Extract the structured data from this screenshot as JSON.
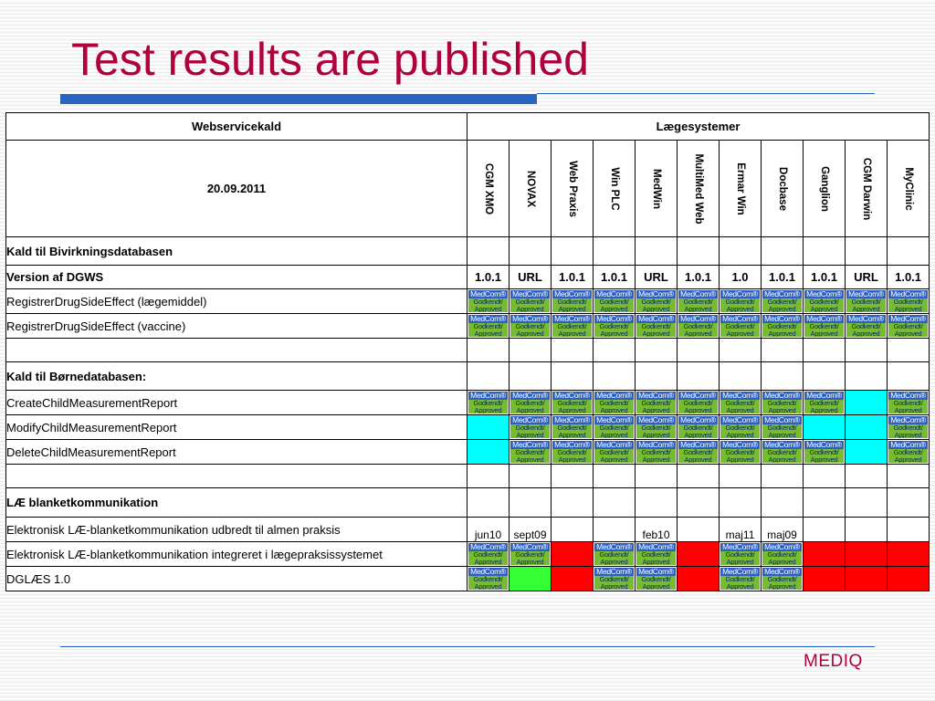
{
  "slide": {
    "title": "Test results are published",
    "footer": "MEDIQ"
  },
  "table": {
    "header_left": "Webservicekald",
    "header_right": "Lægesystemer",
    "date": "20.09.2011",
    "systems": [
      "CGM XMO",
      "NOVAX",
      "Web Praxis",
      "Win PLC",
      "MedWin",
      "MultiMed Web",
      "Ermar Win",
      "Docbase",
      "Ganglion",
      "CGM Darwin",
      "MyClinic"
    ],
    "badge": {
      "line1": "MedCom®",
      "line2": "Godkendt/",
      "line3": "Approved"
    },
    "sections": {
      "bivirkning": "Kald til Bivirkningsdatabasen",
      "born": "Kald til Børnedatabasen:",
      "lae": "LÆ blanketkommunikation"
    },
    "rows": {
      "version": {
        "label": "Version af DGWS",
        "values": [
          "1.0.1",
          "URL",
          "1.0.1",
          "1.0.1",
          "URL",
          "1.0.1",
          "1.0",
          "1.0.1",
          "1.0.1",
          "URL",
          "1.0.1"
        ]
      },
      "reg_drug": {
        "label": "RegistrerDrugSideEffect (lægemiddel)"
      },
      "reg_vaccine": {
        "label": "RegistrerDrugSideEffect (vaccine)"
      },
      "create_child": {
        "label": "CreateChildMeasurementReport"
      },
      "modify_child": {
        "label": "ModifyChildMeasurementReport"
      },
      "delete_child": {
        "label": "DeleteChildMeasurementReport"
      },
      "lae_udbredt": {
        "label": "Elektronisk LÆ-blanketkommunikation udbredt til almen praksis",
        "values": [
          "jun10",
          "sept09",
          "",
          "",
          "feb10",
          "",
          "maj11",
          "maj09",
          "",
          "",
          ""
        ]
      },
      "lae_integreret": {
        "label": "Elektronisk LÆ-blanketkommunikation integreret i lægepraksissystemet"
      },
      "dglaes": {
        "label": "DGLÆS 1.0"
      }
    },
    "status_legend": {
      "B": "MedCom approved badge",
      "C": "cyan",
      "R": "red",
      "G": "green",
      "E": "empty"
    },
    "status": {
      "reg_drug": [
        "B",
        "B",
        "B",
        "B",
        "B",
        "B",
        "B",
        "B",
        "B",
        "B",
        "B"
      ],
      "reg_vaccine": [
        "B",
        "B",
        "B",
        "B",
        "B",
        "B",
        "B",
        "B",
        "B",
        "B",
        "B"
      ],
      "create_child": [
        "B",
        "B",
        "B",
        "B",
        "B",
        "B",
        "B",
        "B",
        "B",
        "C",
        "B"
      ],
      "modify_child": [
        "C",
        "B",
        "B",
        "B",
        "B",
        "B",
        "B",
        "B",
        "C",
        "C",
        "B"
      ],
      "delete_child": [
        "C",
        "B",
        "B",
        "B",
        "B",
        "B",
        "B",
        "B",
        "B",
        "C",
        "B"
      ],
      "lae_integreret": [
        "B",
        "B",
        "R",
        "B",
        "B",
        "R",
        "B",
        "B",
        "R",
        "R",
        "R"
      ],
      "dglaes": [
        "B",
        "G",
        "R",
        "B",
        "B",
        "R",
        "B",
        "B",
        "R",
        "R",
        "R"
      ]
    },
    "colors": {
      "title": "#b00040",
      "rule": "#2666bf",
      "badge_top": "#2b5fc0",
      "badge_body": "#77bb33",
      "cyan": "#00ffff",
      "red": "#ff0000",
      "green": "#33ff33"
    }
  }
}
